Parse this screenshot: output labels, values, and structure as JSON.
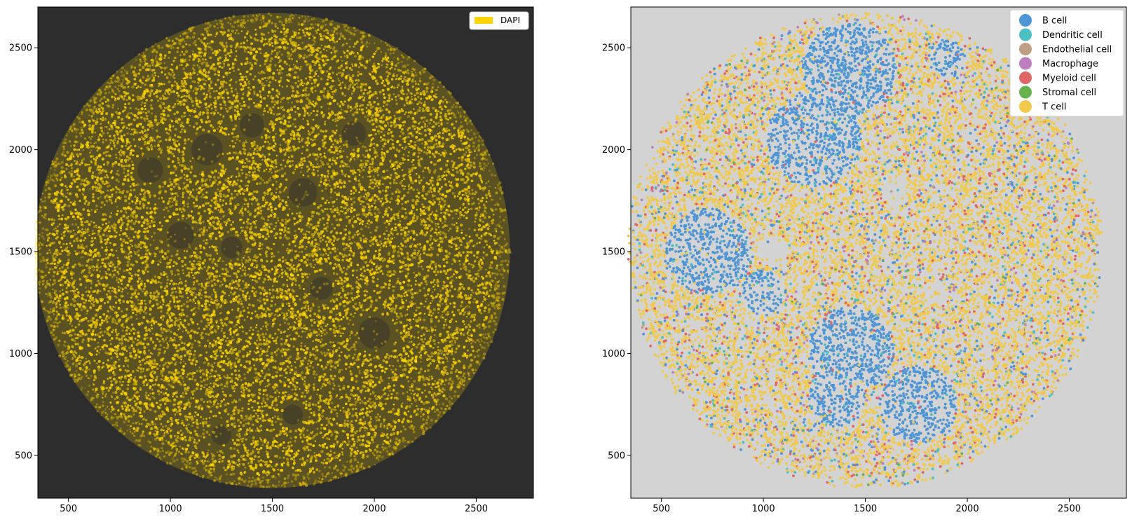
{
  "colors": {
    "panel_dark_bg": "#2d2d2d",
    "panel_light_bg": "#d3d3d3",
    "dapi": "#ffd400",
    "b_cell": "#4e95d6",
    "dendritic_cell": "#4bbfc2",
    "endothelial_cell": "#bf9f83",
    "macrophage": "#be7fbf",
    "myeloid_cell": "#e06666",
    "stromal_cell": "#66b24d",
    "t_cell": "#f0c94d"
  },
  "chart_data": [
    {
      "type": "scatter",
      "title": "",
      "xlabel": "",
      "ylabel": "",
      "xlim": [
        350,
        2780
      ],
      "ylim": [
        290,
        2700
      ],
      "xticks": [
        500,
        1000,
        1500,
        2000,
        2500
      ],
      "yticks": [
        500,
        1000,
        1500,
        2000,
        2500
      ],
      "xtick_labels": [
        "500",
        "1000",
        "1500",
        "2000",
        "2500"
      ],
      "ytick_labels": [
        "500",
        "1000",
        "1500",
        "2000",
        "2500"
      ],
      "legend_position": "upper-right",
      "legend": [
        {
          "label": "DAPI",
          "color": "#ffd400"
        }
      ],
      "tissue_circle": {
        "center": [
          1500,
          1505
        ],
        "radius": 1165
      },
      "dark_regions": [
        {
          "center": [
            1180,
            2000
          ],
          "radius": 110
        },
        {
          "center": [
            900,
            1900
          ],
          "radius": 90
        },
        {
          "center": [
            1400,
            2120
          ],
          "radius": 85
        },
        {
          "center": [
            1650,
            1790
          ],
          "radius": 100
        },
        {
          "center": [
            1900,
            2080
          ],
          "radius": 85
        },
        {
          "center": [
            1050,
            1580
          ],
          "radius": 95
        },
        {
          "center": [
            1300,
            1520
          ],
          "radius": 75
        },
        {
          "center": [
            1740,
            1320
          ],
          "radius": 80
        },
        {
          "center": [
            2000,
            1100
          ],
          "radius": 110
        },
        {
          "center": [
            1600,
            700
          ],
          "radius": 70
        },
        {
          "center": [
            1250,
            600
          ],
          "radius": 70
        }
      ]
    },
    {
      "type": "scatter",
      "title": "",
      "xlabel": "",
      "ylabel": "",
      "xlim": [
        350,
        2780
      ],
      "ylim": [
        290,
        2700
      ],
      "xticks": [
        500,
        1000,
        1500,
        2000,
        2500
      ],
      "yticks": [
        500,
        1000,
        1500,
        2000,
        2500
      ],
      "xtick_labels": [
        "500",
        "1000",
        "1500",
        "2000",
        "2500"
      ],
      "ytick_labels": [
        "500",
        "1000",
        "1500",
        "2000",
        "2500"
      ],
      "legend_position": "upper-right",
      "legend": [
        {
          "label": "B cell",
          "color": "#4e95d6"
        },
        {
          "label": "Dendritic cell",
          "color": "#4bbfc2"
        },
        {
          "label": "Endothelial cell",
          "color": "#bf9f83"
        },
        {
          "label": "Macrophage",
          "color": "#be7fbf"
        },
        {
          "label": "Myeloid cell",
          "color": "#e06666"
        },
        {
          "label": "Stromal cell",
          "color": "#66b24d"
        },
        {
          "label": "T cell",
          "color": "#f0c94d"
        }
      ],
      "tissue_circle": {
        "center": [
          1500,
          1505
        ],
        "radius": 1165
      },
      "b_cell_regions": [
        {
          "center": [
            1420,
            2400
          ],
          "radius": 230
        },
        {
          "center": [
            1250,
            2050
          ],
          "radius": 230
        },
        {
          "center": [
            730,
            1500
          ],
          "radius": 210
        },
        {
          "center": [
            1000,
            1300
          ],
          "radius": 110
        },
        {
          "center": [
            1430,
            1020
          ],
          "radius": 210
        },
        {
          "center": [
            1360,
            780
          ],
          "radius": 140
        },
        {
          "center": [
            1760,
            750
          ],
          "radius": 190
        },
        {
          "center": [
            1900,
            2450
          ],
          "radius": 90
        }
      ],
      "empty_regions": [
        {
          "center": [
            1050,
            1500
          ],
          "radius": 80
        },
        {
          "center": [
            1850,
            1300
          ],
          "radius": 60
        },
        {
          "center": [
            1650,
            1800
          ],
          "radius": 70
        }
      ],
      "cell_type_mix": {
        "t_cell": 0.82,
        "myeloid_cell": 0.08,
        "dendritic_cell": 0.04,
        "macrophage": 0.03,
        "endothelial_cell": 0.02,
        "stromal_cell": 0.01
      }
    }
  ]
}
